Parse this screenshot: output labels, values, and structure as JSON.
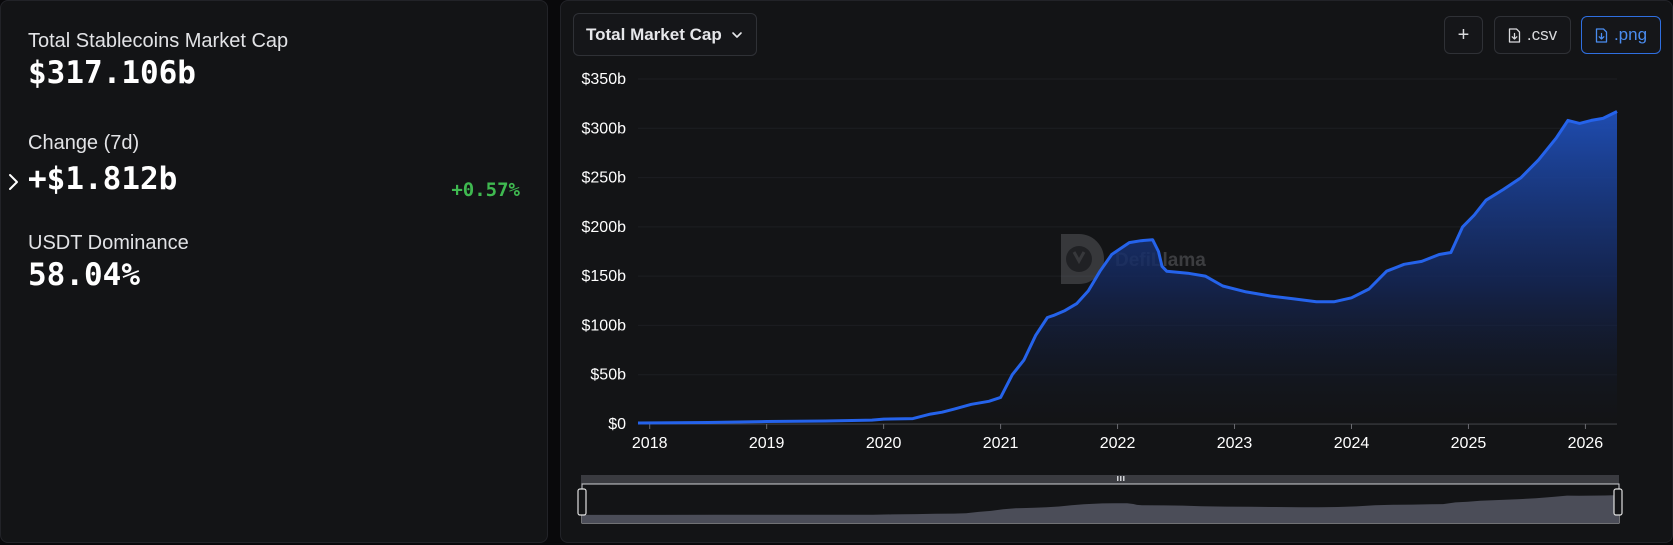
{
  "stats": {
    "market_cap_label": "Total Stablecoins Market Cap",
    "market_cap_value": "$317.106b",
    "change_label": "Change (7d)",
    "change_value": "+$1.812b",
    "change_pct": "+0.57%",
    "dominance_label": "USDT Dominance",
    "dominance_value": "58.04%"
  },
  "toolbar": {
    "metric_select": "Total Market Cap",
    "add_label": "+",
    "csv_label": ".csv",
    "png_label": ".png"
  },
  "watermark": "DefiLlama",
  "colors": {
    "line": "#2563eb",
    "positive": "#3fb950",
    "accent": "#2f6fe0"
  },
  "chart_data": {
    "type": "area",
    "xlabel": "",
    "ylabel": "",
    "y_ticks": [
      "$0",
      "$50b",
      "$100b",
      "$150b",
      "$200b",
      "$250b",
      "$300b",
      "$350b"
    ],
    "x_ticks": [
      "2018",
      "2019",
      "2020",
      "2021",
      "2022",
      "2023",
      "2024",
      "2025",
      "2026"
    ],
    "ylim": [
      0,
      350
    ],
    "xlim": [
      2017.9,
      2026.27
    ],
    "series": [
      {
        "name": "",
        "x": [
          2017.9,
          2018.5,
          2019.0,
          2019.5,
          2019.9,
          2020.0,
          2020.25,
          2020.4,
          2020.5,
          2020.6,
          2020.75,
          2020.9,
          2021.0,
          2021.1,
          2021.2,
          2021.3,
          2021.4,
          2021.45,
          2021.55,
          2021.65,
          2021.75,
          2021.85,
          2021.95,
          2022.1,
          2022.2,
          2022.3,
          2022.35,
          2022.38,
          2022.42,
          2022.6,
          2022.75,
          2022.9,
          2023.1,
          2023.3,
          2023.5,
          2023.7,
          2023.85,
          2024.0,
          2024.15,
          2024.3,
          2024.45,
          2024.6,
          2024.75,
          2024.85,
          2024.95,
          2025.05,
          2025.15,
          2025.3,
          2025.45,
          2025.6,
          2025.75,
          2025.85,
          2025.95,
          2026.05,
          2026.15,
          2026.27
        ],
        "values": [
          1,
          1.5,
          2.5,
          3,
          4,
          5,
          5.5,
          10,
          12,
          15,
          20,
          23,
          27,
          50,
          65,
          90,
          108,
          110,
          115,
          122,
          135,
          155,
          172,
          184,
          186,
          187,
          175,
          160,
          155,
          153,
          150,
          140,
          134,
          130,
          127,
          124,
          124,
          128,
          137,
          155,
          162,
          165,
          172,
          174,
          200,
          212,
          227,
          238,
          250,
          268,
          290,
          308,
          305,
          308,
          310,
          317
        ]
      }
    ]
  }
}
